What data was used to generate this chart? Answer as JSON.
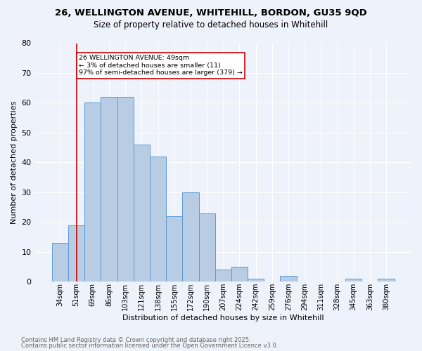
{
  "title1": "26, WELLINGTON AVENUE, WHITEHILL, BORDON, GU35 9QD",
  "title2": "Size of property relative to detached houses in Whitehill",
  "xlabel": "Distribution of detached houses by size in Whitehill",
  "ylabel": "Number of detached properties",
  "categories": [
    "34sqm",
    "51sqm",
    "69sqm",
    "86sqm",
    "103sqm",
    "121sqm",
    "138sqm",
    "155sqm",
    "172sqm",
    "190sqm",
    "207sqm",
    "224sqm",
    "242sqm",
    "259sqm",
    "276sqm",
    "294sqm",
    "311sqm",
    "328sqm",
    "345sqm",
    "363sqm",
    "380sqm"
  ],
  "values": [
    13,
    19,
    60,
    62,
    62,
    46,
    42,
    22,
    30,
    23,
    4,
    5,
    1,
    0,
    2,
    0,
    0,
    0,
    1,
    0,
    1
  ],
  "bar_color": "#b8cce4",
  "bar_edge_color": "#5b9bd5",
  "background_color": "#eef2fb",
  "grid_color": "#ffffff",
  "annotation_box_facecolor": "#ffffff",
  "annotation_border_color": "#cc0000",
  "vline_color": "#cc0000",
  "vline_x": 1,
  "annotation_text_line1": "26 WELLINGTON AVENUE: 49sqm",
  "annotation_text_line2": "← 3% of detached houses are smaller (11)",
  "annotation_text_line3": "97% of semi-detached houses are larger (379) →",
  "ylim": [
    0,
    80
  ],
  "yticks": [
    0,
    10,
    20,
    30,
    40,
    50,
    60,
    70,
    80
  ],
  "footnote1": "Contains HM Land Registry data © Crown copyright and database right 2025.",
  "footnote2": "Contains public sector information licensed under the Open Government Licence v3.0."
}
